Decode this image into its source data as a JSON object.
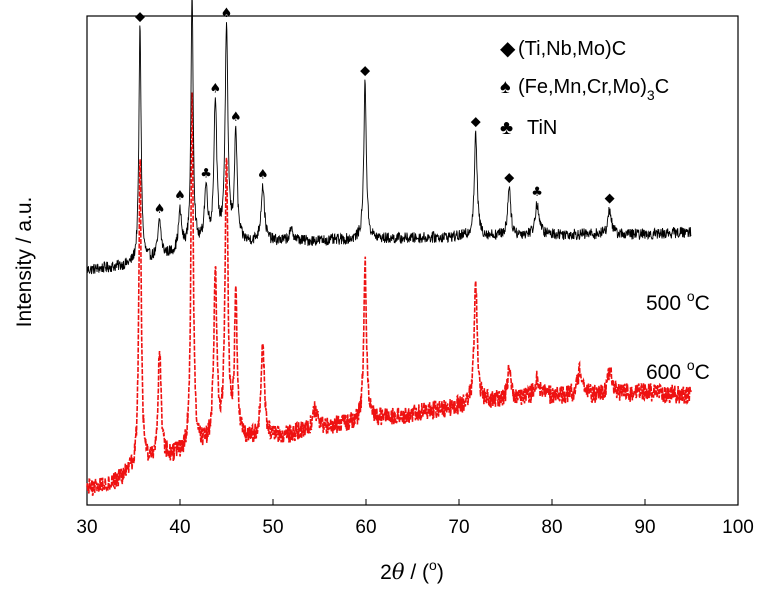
{
  "chart_data": {
    "type": "line",
    "xlabel": "2θ / (°)",
    "xlabel_parts": {
      "var": "θ",
      "prefix": "2",
      "sep": " / (",
      "unit": "o",
      "suffix": ")"
    },
    "ylabel": "Intensity / a.u.",
    "xlim": [
      30,
      100
    ],
    "x_ticks": [
      30,
      40,
      50,
      60,
      70,
      80,
      90,
      100
    ],
    "y_ticks_shown": false,
    "grid": false,
    "legend_position": "top-right",
    "legend": [
      {
        "symbol": "diamond",
        "glyph": "◆",
        "label": "(Ti,Nb,Mo)C"
      },
      {
        "symbol": "spade",
        "glyph": "♠",
        "label": "(Fe,Mn,Cr,Mo)",
        "subscript": "3",
        "label_after": "C"
      },
      {
        "symbol": "club",
        "glyph": "♣",
        "label": "TiN"
      }
    ],
    "series": [
      {
        "name": "500 °C",
        "label_parts": {
          "value": "500 ",
          "sup": "o",
          "unit": "C"
        },
        "color": "#000000",
        "baseline": [
          [
            30,
            0.4
          ],
          [
            35,
            0.42
          ],
          [
            40,
            0.47
          ],
          [
            45,
            0.5
          ],
          [
            50,
            0.51
          ],
          [
            60,
            0.52
          ],
          [
            70,
            0.53
          ],
          [
            80,
            0.54
          ],
          [
            90,
            0.54
          ],
          [
            95,
            0.55
          ]
        ],
        "noise": 0.022,
        "peaks": [
          {
            "x": 35.7,
            "height": 0.93,
            "width": 0.14
          },
          {
            "x": 37.8,
            "height": 0.14,
            "width": 0.2
          },
          {
            "x": 40.0,
            "height": 0.15,
            "width": 0.2
          },
          {
            "x": 41.3,
            "height": 1.0,
            "width": 0.14
          },
          {
            "x": 42.8,
            "height": 0.22,
            "width": 0.22
          },
          {
            "x": 43.8,
            "height": 0.57,
            "width": 0.18
          },
          {
            "x": 45.0,
            "height": 0.83,
            "width": 0.18
          },
          {
            "x": 46.0,
            "height": 0.43,
            "width": 0.17
          },
          {
            "x": 48.9,
            "height": 0.22,
            "width": 0.22
          },
          {
            "x": 52.0,
            "height": 0.04,
            "width": 0.3
          },
          {
            "x": 59.9,
            "height": 0.62,
            "width": 0.16
          },
          {
            "x": 71.8,
            "height": 0.4,
            "width": 0.18
          },
          {
            "x": 75.4,
            "height": 0.2,
            "width": 0.18
          },
          {
            "x": 78.4,
            "height": 0.12,
            "width": 0.25
          },
          {
            "x": 86.2,
            "height": 0.1,
            "width": 0.22
          }
        ]
      },
      {
        "name": "600 °C",
        "label_parts": {
          "value": "600 ",
          "sup": "o",
          "unit": "C"
        },
        "color": "#ee1111",
        "baseline": [
          [
            30,
            0.03
          ],
          [
            33,
            0.05
          ],
          [
            35,
            0.08
          ],
          [
            38,
            0.11
          ],
          [
            42,
            0.14
          ],
          [
            46,
            0.16
          ],
          [
            50,
            0.17
          ],
          [
            55,
            0.2
          ],
          [
            60,
            0.22
          ],
          [
            65,
            0.24
          ],
          [
            70,
            0.26
          ],
          [
            75,
            0.28
          ],
          [
            80,
            0.29
          ],
          [
            85,
            0.29
          ],
          [
            90,
            0.3
          ],
          [
            95,
            0.29
          ]
        ],
        "noise": 0.026,
        "peaks": [
          {
            "x": 35.7,
            "height": 0.86,
            "width": 0.15
          },
          {
            "x": 37.8,
            "height": 0.3,
            "width": 0.2
          },
          {
            "x": 41.3,
            "height": 1.0,
            "width": 0.15
          },
          {
            "x": 43.8,
            "height": 0.47,
            "width": 0.2
          },
          {
            "x": 45.0,
            "height": 0.79,
            "width": 0.18
          },
          {
            "x": 46.0,
            "height": 0.4,
            "width": 0.17
          },
          {
            "x": 48.9,
            "height": 0.26,
            "width": 0.22
          },
          {
            "x": 54.5,
            "height": 0.05,
            "width": 0.3
          },
          {
            "x": 59.9,
            "height": 0.44,
            "width": 0.17
          },
          {
            "x": 71.8,
            "height": 0.33,
            "width": 0.2
          },
          {
            "x": 75.4,
            "height": 0.08,
            "width": 0.2
          },
          {
            "x": 78.4,
            "height": 0.05,
            "width": 0.3
          },
          {
            "x": 83.0,
            "height": 0.07,
            "width": 0.3
          },
          {
            "x": 86.2,
            "height": 0.07,
            "width": 0.3
          }
        ]
      }
    ],
    "peak_markers": [
      {
        "x": 35.7,
        "phase": "diamond",
        "glyph": "◆"
      },
      {
        "x": 37.8,
        "phase": "spade",
        "glyph": "♠"
      },
      {
        "x": 40.0,
        "phase": "spade",
        "glyph": "♠"
      },
      {
        "x": 41.3,
        "phase": "diamond",
        "glyph": "◆"
      },
      {
        "x": 42.8,
        "phase": "club",
        "glyph": "♣"
      },
      {
        "x": 43.8,
        "phase": "spade",
        "glyph": "♠"
      },
      {
        "x": 45.0,
        "phase": "spade",
        "glyph": "♠"
      },
      {
        "x": 46.0,
        "phase": "spade",
        "glyph": "♠"
      },
      {
        "x": 48.9,
        "phase": "spade",
        "glyph": "♠"
      },
      {
        "x": 59.9,
        "phase": "diamond",
        "glyph": "◆"
      },
      {
        "x": 71.8,
        "phase": "diamond",
        "glyph": "◆"
      },
      {
        "x": 75.4,
        "phase": "diamond",
        "glyph": "◆"
      },
      {
        "x": 78.4,
        "phase": "club",
        "glyph": "♣"
      },
      {
        "x": 86.2,
        "phase": "diamond",
        "glyph": "◆"
      }
    ]
  }
}
